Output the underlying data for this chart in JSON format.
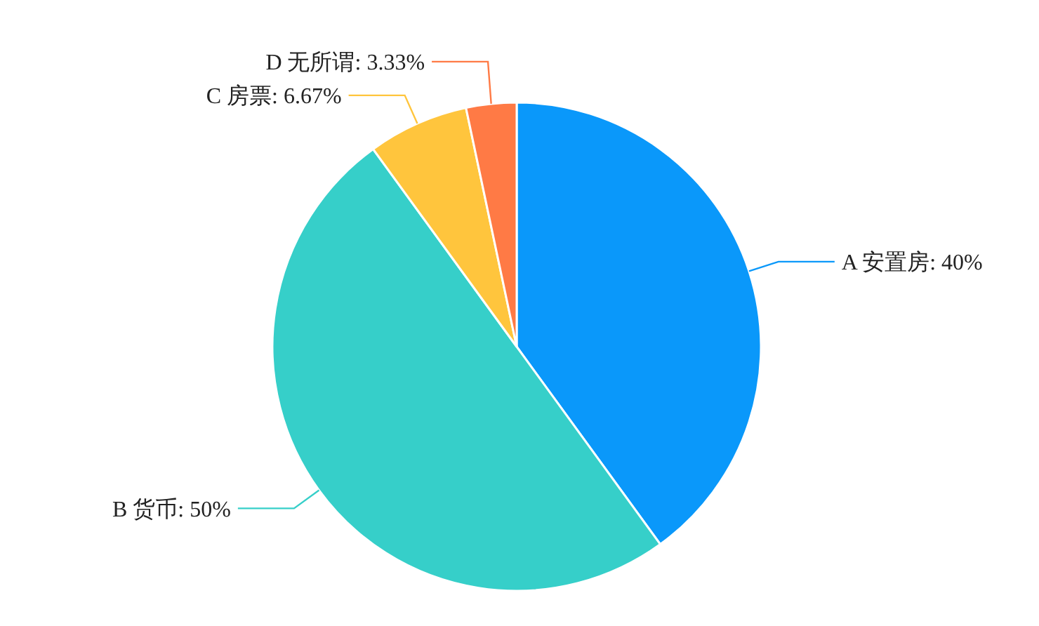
{
  "chart_data": {
    "type": "pie",
    "categories": [
      "A 安置房",
      "B 货币",
      "C 房票",
      "D 无所谓"
    ],
    "values": [
      40,
      50,
      6.67,
      3.33
    ],
    "colors": [
      "#0a98fa",
      "#36cfc9",
      "#ffc53d",
      "#ff7a45"
    ],
    "value_labels": [
      ": 40%",
      ": 50%",
      ": 6.67%",
      ": 3.33%"
    ]
  }
}
